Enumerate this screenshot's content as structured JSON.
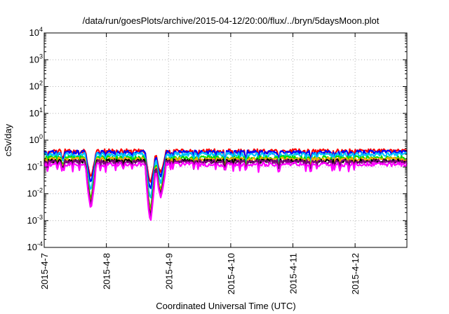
{
  "chart_data": {
    "type": "line",
    "title": "/data/run/goesPlots/archive/2015-04-12/20:00/flux/../bryn/5daysMoon.plot",
    "xlabel": "Coordinated Universal Time (UTC)",
    "ylabel": "cSv/day",
    "x_range": [
      "2015-04-07",
      "2015-04-12T20:00"
    ],
    "x_ticks": [
      "2015-4-7",
      "2015-4-8",
      "2015-4-9",
      "2015-4-10",
      "2015-4-11",
      "2015-4-12"
    ],
    "y_scale": "log",
    "ylim": [
      0.0001,
      10000
    ],
    "y_ticks": [
      {
        "base": "10",
        "exp": "-4"
      },
      {
        "base": "10",
        "exp": "-3"
      },
      {
        "base": "10",
        "exp": "-2"
      },
      {
        "base": "10",
        "exp": "-1"
      },
      {
        "base": "10",
        "exp": "0"
      },
      {
        "base": "10",
        "exp": "1"
      },
      {
        "base": "10",
        "exp": "2"
      },
      {
        "base": "10",
        "exp": "3"
      },
      {
        "base": "10",
        "exp": "4"
      }
    ],
    "grid": true,
    "legend": "none",
    "series": [
      {
        "color": "#ff0000",
        "base": 0.38
      },
      {
        "color": "#0000ff",
        "base": 0.34
      },
      {
        "color": "#00c0ff",
        "base": 0.28
      },
      {
        "color": "#00dd00",
        "base": 0.21
      },
      {
        "color": "#ffa500",
        "base": 0.185
      },
      {
        "color": "#000000",
        "base": 0.16
      },
      {
        "color": "#800080",
        "base": 0.15
      },
      {
        "color": "#ff00ff",
        "base": 0.12
      }
    ],
    "dips": [
      {
        "x": "2015-04-07T18:00",
        "min": 0.0025
      },
      {
        "x": "2015-04-08T17:00",
        "min": 0.0008
      },
      {
        "x": "2015-04-08T21:00",
        "min": 0.007
      }
    ]
  }
}
